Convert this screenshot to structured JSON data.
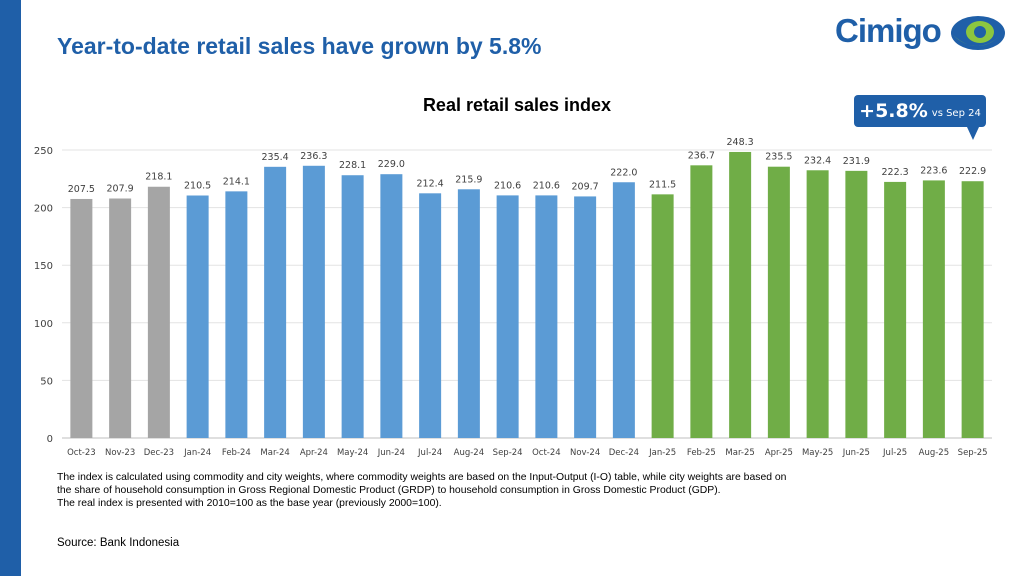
{
  "header": {
    "title": "Year-to-date retail sales have grown by 5.8%",
    "logo_text": "Cimigo"
  },
  "callout": {
    "value": "+5.8%",
    "label": "vs Sep 24"
  },
  "colors": {
    "brand": "#1f5fa8",
    "gray": "#a5a5a5",
    "blue": "#5b9bd5",
    "green": "#70ad47",
    "logo_green": "#8cc63f"
  },
  "chart_data": {
    "type": "bar",
    "title": "Real retail sales index",
    "categories": [
      "Oct-23",
      "Nov-23",
      "Dec-23",
      "Jan-24",
      "Feb-24",
      "Mar-24",
      "Apr-24",
      "May-24",
      "Jun-24",
      "Jul-24",
      "Aug-24",
      "Sep-24",
      "Oct-24",
      "Nov-24",
      "Dec-24",
      "Jan-25",
      "Feb-25",
      "Mar-25",
      "Apr-25",
      "May-25",
      "Jun-25",
      "Jul-25",
      "Aug-25",
      "Sep-25"
    ],
    "values": [
      207.5,
      207.9,
      218.1,
      210.5,
      214.1,
      235.4,
      236.3,
      228.1,
      229.0,
      212.4,
      215.9,
      210.6,
      210.6,
      209.7,
      222.0,
      211.5,
      236.7,
      248.3,
      235.5,
      232.4,
      231.9,
      222.3,
      223.6,
      222.9
    ],
    "bar_colors_by_year": {
      "2023": "gray",
      "2024": "blue",
      "2025": "green"
    },
    "ylim": [
      0,
      250
    ],
    "yticks": [
      0,
      50,
      100,
      150,
      200,
      250
    ],
    "grid": true,
    "data_labels": true
  },
  "footnote": {
    "lines": [
      "The index is calculated using commodity and city weights, where commodity weights are based on the Input-Output (I-O) table, while city weights are based on",
      "the share of household consumption in Gross Regional Domestic Product (GRDP) to household consumption in Gross Domestic Product (GDP).",
      "The real index is presented with 2010=100 as the base year (previously 2000=100)."
    ],
    "source": "Source: Bank Indonesia"
  }
}
